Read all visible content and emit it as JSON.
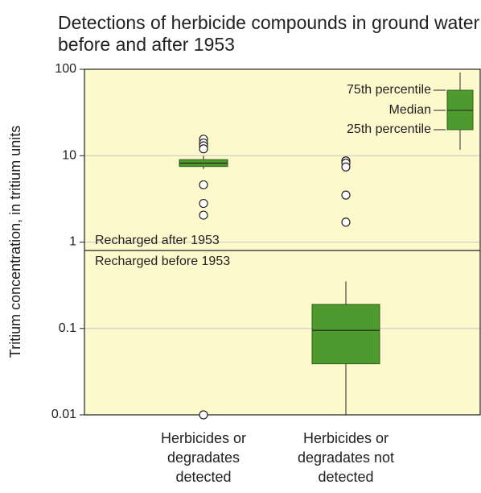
{
  "chart_data": {
    "type": "box",
    "title": "Detections of herbicide compounds in ground water recharged before and after 1953",
    "y_label": "Tritium concentration, in tritium units",
    "categories": [
      "Herbicides or degradates detected",
      "Herbicides or degradates not detected"
    ],
    "boxes": [
      {
        "whislo": 7,
        "q1": 7.5,
        "med": 8.2,
        "q3": 9,
        "whishi": 10,
        "fliers": [
          15.5,
          14,
          13,
          12,
          4.6,
          2.8,
          2.05,
          0.01
        ]
      },
      {
        "whislo": 0.01,
        "q1": 0.039,
        "med": 0.095,
        "q3": 0.19,
        "whishi": 0.35,
        "fliers": [
          8.7,
          8.2,
          7.4,
          3.5,
          1.7
        ]
      }
    ],
    "color": "#4f9a2f",
    "ylim": [
      0.01,
      100
    ],
    "yticks": [
      0.01,
      0.1,
      1,
      10,
      100
    ],
    "log_y": true,
    "grid": true,
    "threshold": {
      "value": 0.8,
      "label_above": "Recharged after 1953",
      "label_below": "Recharged before 1953"
    },
    "key": {
      "q3": "75th percentile",
      "med": "Median",
      "q1": "25th percentile"
    }
  }
}
